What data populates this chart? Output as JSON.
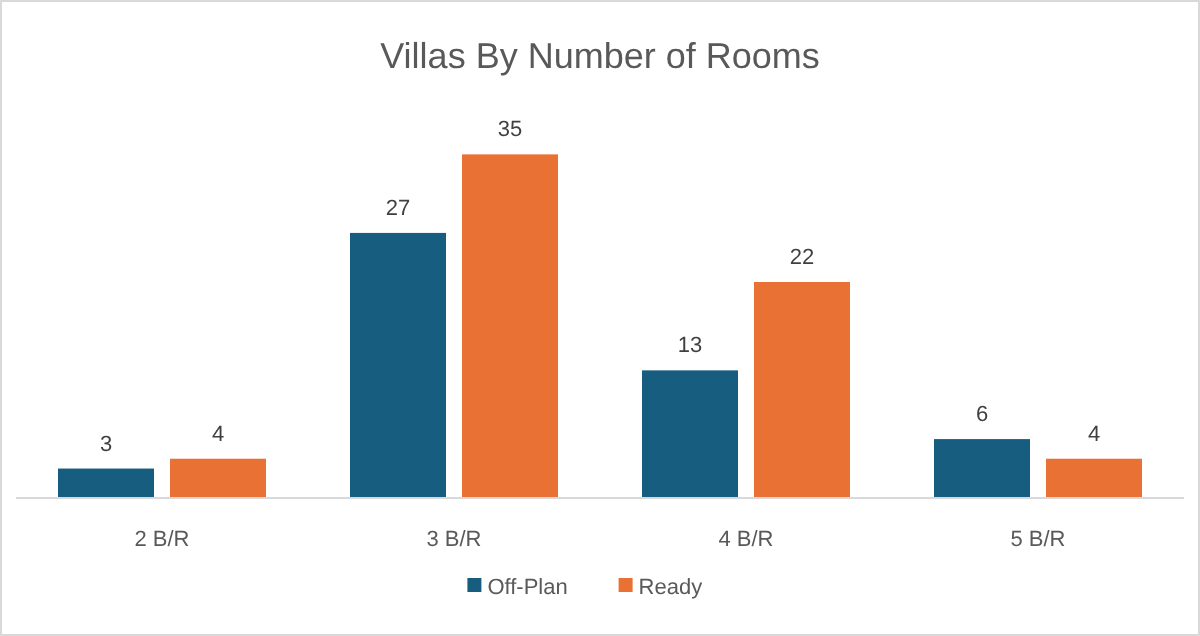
{
  "chart_data": {
    "type": "bar",
    "title": "Villas By Number of Rooms",
    "categories": [
      "2 B/R",
      "3 B/R",
      "4 B/R",
      "5 B/R"
    ],
    "series": [
      {
        "name": "Off-Plan",
        "color": "#175d80",
        "values": [
          3,
          27,
          13,
          6
        ]
      },
      {
        "name": "Ready",
        "color": "#ea7134",
        "values": [
          4,
          35,
          22,
          4
        ]
      }
    ],
    "data_labels": true,
    "legend": "bottom"
  }
}
